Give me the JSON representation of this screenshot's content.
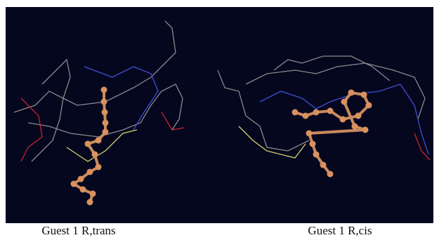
{
  "panels": [
    {
      "caption": "Guest 1 R,trans"
    },
    {
      "caption": "Guest 1 R,cis"
    }
  ]
}
